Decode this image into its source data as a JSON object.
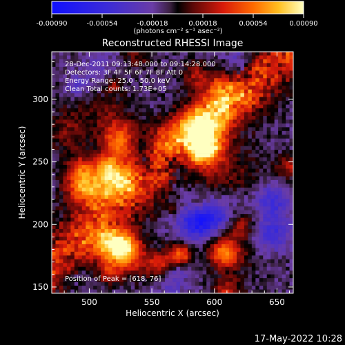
{
  "chart_data": {
    "type": "heatmap",
    "title": "Reconstructed RHESSI Image",
    "xlabel": "Heliocentric X (arcsec)",
    "ylabel": "Heliocentric Y (arcsec)",
    "xlim": [
      470,
      663
    ],
    "ylim": [
      145,
      338
    ],
    "x_ticks": [
      500,
      550,
      600,
      650
    ],
    "y_ticks": [
      150,
      200,
      250,
      300
    ],
    "colorbar": {
      "range": [
        -0.0009,
        0.0009
      ],
      "ticks": [
        "-0.00090",
        "-0.00054",
        "-0.00018",
        "0.00018",
        "0.00054",
        "0.00090"
      ],
      "unit_label": "(photons cm⁻² s⁻¹ asec⁻²)"
    },
    "annotations": [
      "28-Dec-2011 09:13:48.000 to 09:14:28.000",
      "Detectors: 3F 4F 5F 6F 7F 8F  Att 0",
      "Energy Range: 25.0 - 50.0 keV",
      "Clean    Total counts: 1.73E+05"
    ],
    "peak_label": "Position of Peak = [618, 76]",
    "notes": "Noisy reconstructed map, ~64x64 pixels; bright ridge running from lower-left to upper-right, values span the full colorbar range."
  },
  "footer": {
    "date": "17-May-2022 10:28"
  }
}
